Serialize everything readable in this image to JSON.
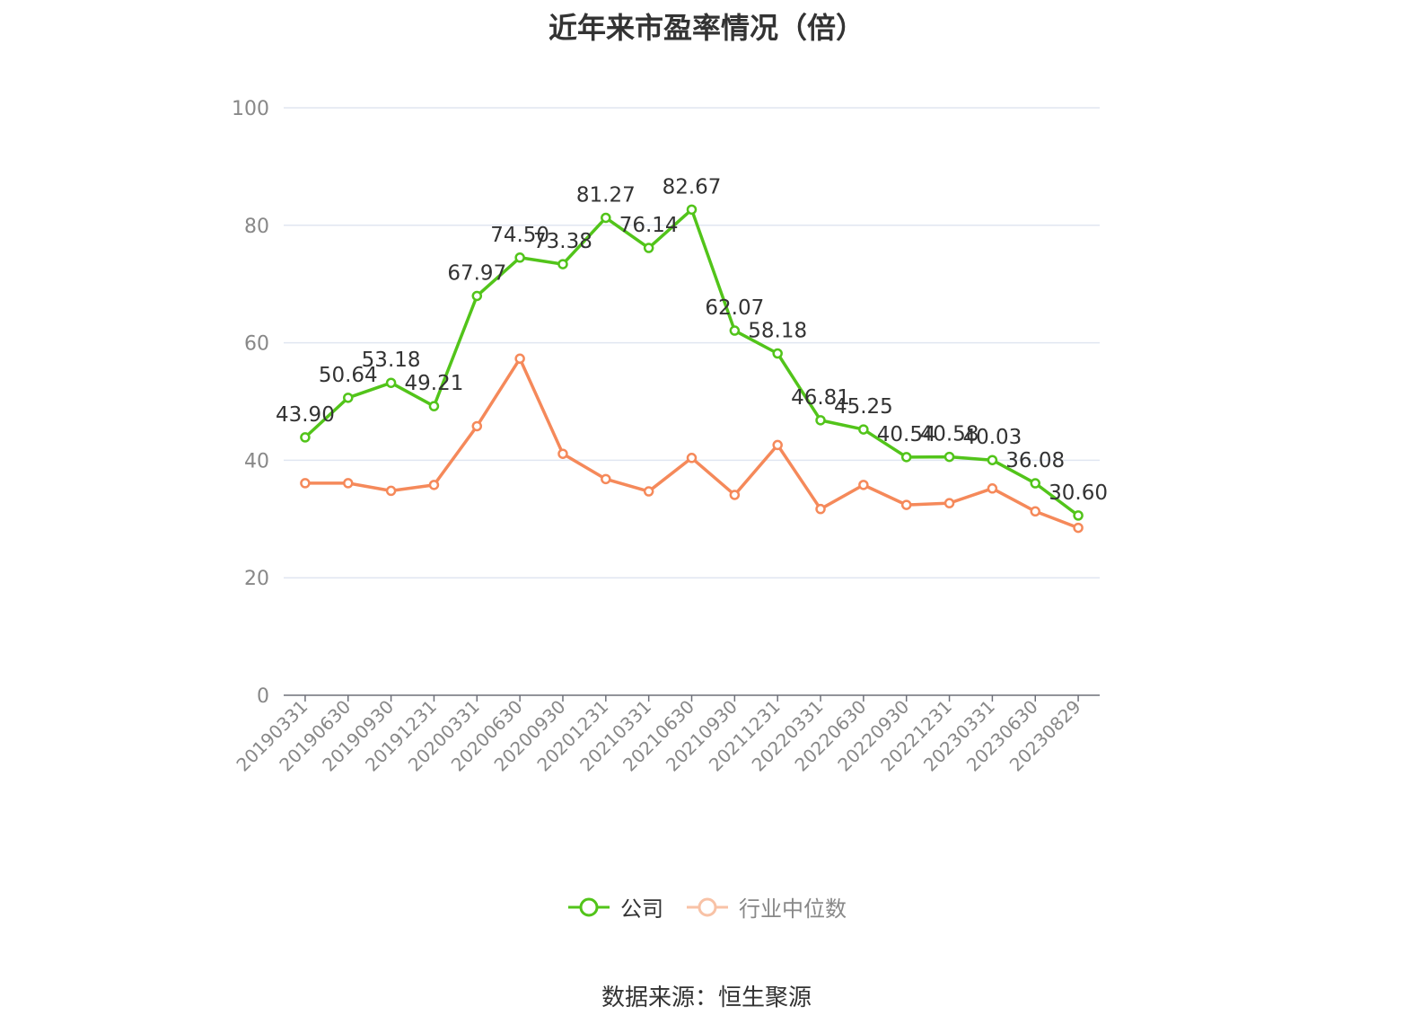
{
  "chart_data": {
    "type": "line",
    "title": "近年来市盈率情况（倍）",
    "categories": [
      "20190331",
      "20190630",
      "20190930",
      "20191231",
      "20200331",
      "20200630",
      "20200930",
      "20201231",
      "20210331",
      "20210630",
      "20210930",
      "20211231",
      "20220331",
      "20220630",
      "20220930",
      "20221231",
      "20230331",
      "20230630",
      "20230829"
    ],
    "ylim": [
      0,
      100
    ],
    "yticks": [
      0,
      20,
      40,
      60,
      80,
      100
    ],
    "grid": true,
    "legend_position": "bottom",
    "series": [
      {
        "name": "公司",
        "color": "#52c41a",
        "values": [
          43.9,
          50.64,
          53.18,
          49.21,
          67.97,
          74.5,
          73.38,
          81.27,
          76.14,
          82.67,
          62.07,
          58.18,
          46.81,
          45.25,
          40.54,
          40.58,
          40.03,
          36.08,
          30.6
        ],
        "labels": [
          "43.90",
          "50.64",
          "53.18",
          "49.21",
          "67.97",
          "74.50",
          "73.38",
          "81.27",
          "76.14",
          "82.67",
          "62.07",
          "58.18",
          "46.81",
          "45.25",
          "40.54",
          "40.58",
          "40.03",
          "36.08",
          "30.60"
        ]
      },
      {
        "name": "行业中位数",
        "color": "#f5895a",
        "values": [
          36.1,
          36.1,
          34.8,
          35.8,
          45.8,
          57.3,
          41.1,
          36.8,
          34.7,
          40.4,
          34.1,
          42.6,
          31.7,
          35.8,
          32.4,
          32.7,
          35.2,
          31.3,
          28.5
        ]
      }
    ]
  },
  "source": "数据来源：恒生聚源"
}
